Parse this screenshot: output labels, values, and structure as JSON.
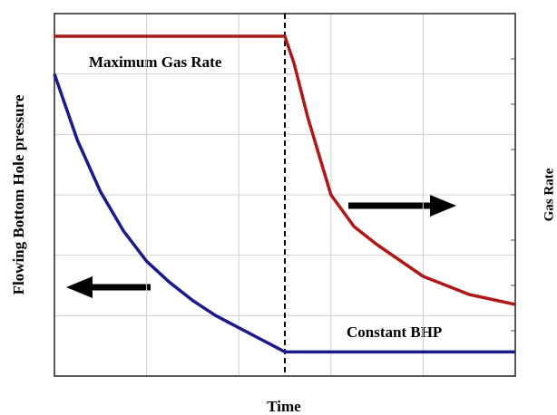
{
  "chart_data": {
    "type": "line",
    "x_label": "Time",
    "y_label": "Flowing Bottom Hole pressure",
    "y2_label": "Gas Rate",
    "annotations": [
      "Maximum Gas Rate",
      "Constant BHP"
    ],
    "xlim": [
      0,
      5
    ],
    "xticks": [
      0,
      1,
      2,
      3,
      4,
      5
    ],
    "ylim": [
      0,
      6
    ],
    "yticks": [
      0,
      1,
      2,
      3,
      4,
      5,
      6
    ],
    "y2lim": [
      0,
      8
    ],
    "y2ticks": [
      0,
      1,
      2,
      3,
      4,
      5,
      6,
      7,
      8
    ],
    "grid": true,
    "vline": 2.5,
    "series": [
      {
        "color": "#1a1a8c",
        "axis": "y",
        "x": [
          0,
          0.25,
          0.5,
          0.75,
          1,
          1.25,
          1.5,
          1.75,
          2,
          2.25,
          2.5,
          5
        ],
        "values": [
          5.0,
          3.9,
          3.05,
          2.4,
          1.9,
          1.55,
          1.25,
          1.0,
          0.8,
          0.6,
          0.4,
          0.4
        ]
      },
      {
        "color": "#b01818",
        "axis": "y2",
        "x": [
          0,
          2.5,
          2.6,
          2.75,
          3,
          3.25,
          3.5,
          4,
          4.5,
          5
        ],
        "values": [
          7.5,
          7.5,
          6.9,
          5.7,
          4.0,
          3.3,
          2.9,
          2.2,
          1.8,
          1.58
        ]
      }
    ]
  }
}
